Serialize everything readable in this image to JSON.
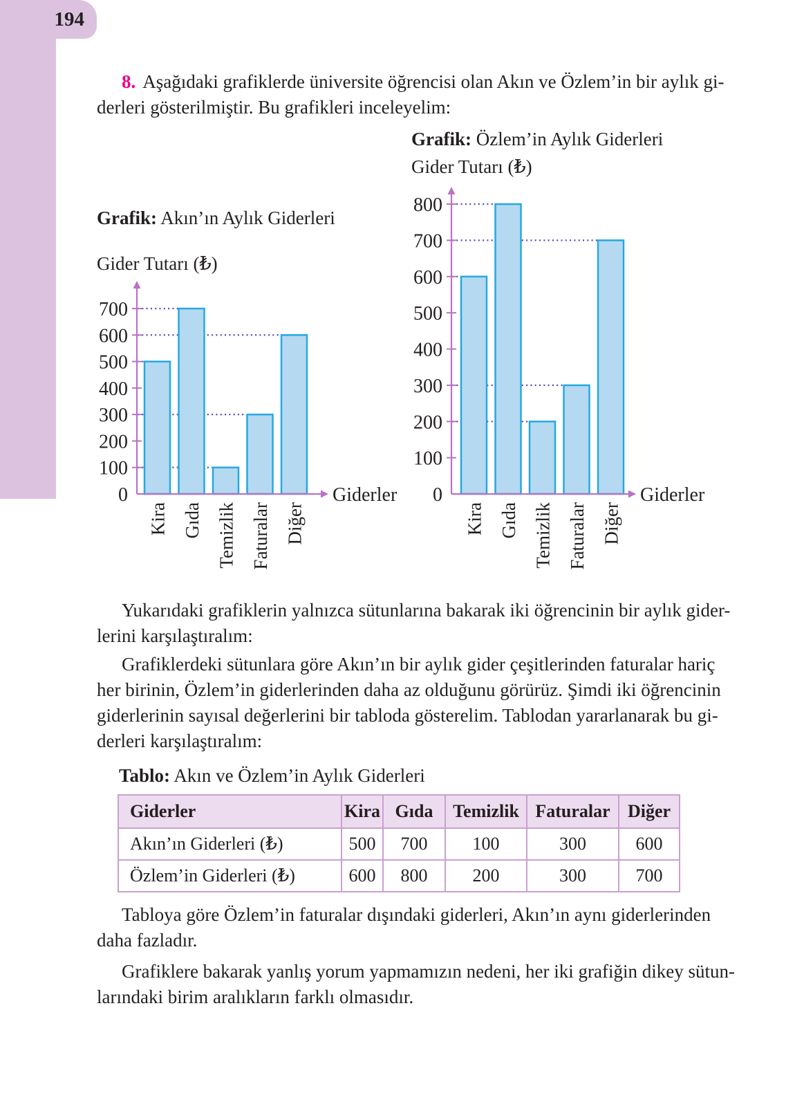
{
  "page": {
    "number": "194"
  },
  "colors": {
    "text": "#231f20",
    "accent_pink": "#ec008c",
    "axis_purple": "#ba72c5",
    "grid_dot_blue": "#4a4ab8",
    "bar_fill": "#b5d9f1",
    "bar_stroke": "#25a9e0",
    "margin_strip_lilac": "#dcc2df",
    "table_border": "#c9a0d0",
    "table_header_bg": "#eddcef"
  },
  "intro": {
    "number": "8.",
    "line1": "Aşağıdaki grafiklerde üniversite öğrencisi olan Akın ve Özlem’in bir aylık gi-",
    "line2": "derleri gösterilmiştir. Bu grafikleri inceleyelim:"
  },
  "chart_data": [
    {
      "id": "akin",
      "type": "bar",
      "title_prefix": "Grafik:",
      "title": "Akın’ın Aylık Giderleri",
      "y_axis_label": "Gider Tutarı (₺)",
      "x_axis_label": "Giderler",
      "categories": [
        "Kira",
        "Gıda",
        "Temizlik",
        "Faturalar",
        "Diğer"
      ],
      "values": [
        500,
        700,
        100,
        300,
        600
      ],
      "ylim": [
        0,
        700
      ],
      "y_tick_step": 100,
      "grid": "dotted horizontal guide at each bar value",
      "legend": "none"
    },
    {
      "id": "ozlem",
      "type": "bar",
      "title_prefix": "Grafik:",
      "title": "Özlem’in Aylık Giderleri",
      "y_axis_label": "Gider Tutarı (₺)",
      "x_axis_label": "Giderler",
      "categories": [
        "Kira",
        "Gıda",
        "Temizlik",
        "Faturalar",
        "Diğer"
      ],
      "values": [
        600,
        800,
        200,
        300,
        700
      ],
      "ylim": [
        0,
        800
      ],
      "y_tick_step": 100,
      "grid": "dotted horizontal guide at each bar value",
      "legend": "none"
    }
  ],
  "paragraphs": {
    "p2": {
      "lines": [
        "Yukarıdaki grafiklerin yalnızca sütunlarına bakarak iki öğrencinin bir aylık gider-",
        "lerini karşılaştıralım:"
      ]
    },
    "p3": {
      "lines": [
        "Grafiklerdeki sütunlara göre Akın’ın bir aylık gider çeşitlerinden faturalar hariç",
        "her birinin, Özlem’in giderlerinden daha az olduğunu görürüz. Şimdi iki öğrencinin",
        "giderlerinin sayısal değerlerini bir tabloda gösterelim. Tablodan yararlanarak bu gi-",
        "derleri karşılaştıralım:"
      ]
    },
    "p4": {
      "lines": [
        "Tabloya göre Özlem’in faturalar dışındaki giderleri, Akın’ın aynı giderlerinden",
        "daha fazladır."
      ]
    },
    "p5": {
      "lines": [
        "Grafiklere bakarak yanlış yorum yapmamızın nedeni, her iki grafiğin dikey sütun-",
        "larındaki birim aralıkların farklı olmasıdır."
      ]
    }
  },
  "table": {
    "title_prefix": "Tablo:",
    "title": "Akın ve Özlem’in Aylık Giderleri",
    "headers": [
      "Giderler",
      "Kira",
      "Gıda",
      "Temizlik",
      "Faturalar",
      "Diğer"
    ],
    "rows": [
      {
        "label": "Akın’ın Giderleri (₺)",
        "values": [
          "500",
          "700",
          "100",
          "300",
          "600"
        ]
      },
      {
        "label": "Özlem’in Giderleri (₺)",
        "values": [
          "600",
          "800",
          "200",
          "300",
          "700"
        ]
      }
    ]
  }
}
